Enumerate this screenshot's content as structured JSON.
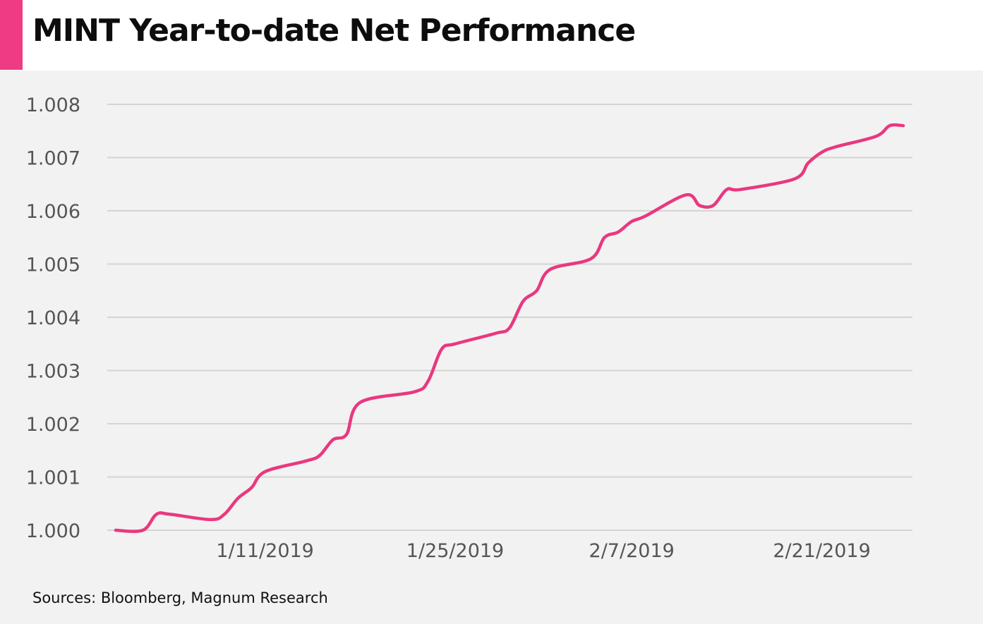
{
  "title": "MINT Year-to-date Net Performance",
  "source": "Sources:  Bloomberg, Magnum Research",
  "colors": {
    "accent": "#ef3b84",
    "line": "#e9387f",
    "grid": "#d4d4d4",
    "background": "#f2f2f2"
  },
  "chart_data": {
    "type": "line",
    "title": "MINT Year-to-date Net Performance",
    "xlabel": "",
    "ylabel": "",
    "grid": true,
    "legend": "none",
    "ylim": [
      1.0,
      1.008
    ],
    "yticks": [
      "1.000",
      "1.001",
      "1.002",
      "1.003",
      "1.004",
      "1.005",
      "1.006",
      "1.007",
      "1.008"
    ],
    "xticks": [
      "1/11/2019",
      "1/25/2019",
      "2/7/2019",
      "2/21/2019"
    ],
    "series": [
      {
        "x": [
          "12/31/2018",
          "1/2/2019",
          "1/3/2019",
          "1/4/2019",
          "1/7/2019",
          "1/8/2019",
          "1/9/2019",
          "1/10/2019",
          "1/11/2019",
          "1/14/2019",
          "1/15/2019",
          "1/16/2019",
          "1/17/2019",
          "1/18/2019",
          "1/22/2019",
          "1/23/2019",
          "1/24/2019",
          "1/25/2019",
          "1/28/2019",
          "1/29/2019",
          "1/30/2019",
          "1/31/2019",
          "2/1/2019",
          "2/4/2019",
          "2/5/2019",
          "2/6/2019",
          "2/7/2019",
          "2/8/2019",
          "2/11/2019",
          "2/12/2019",
          "2/13/2019",
          "2/14/2019",
          "2/15/2019",
          "2/19/2019",
          "2/20/2019",
          "2/21/2019",
          "2/22/2019",
          "2/25/2019",
          "2/26/2019",
          "2/27/2019"
        ],
        "values": [
          1.0,
          1.0,
          1.0003,
          1.0003,
          1.0002,
          1.0003,
          1.0006,
          1.0008,
          1.0011,
          1.0013,
          1.0014,
          1.0017,
          1.0018,
          1.0024,
          1.0026,
          1.0028,
          1.0034,
          1.0035,
          1.0037,
          1.0038,
          1.0043,
          1.0045,
          1.0049,
          1.0051,
          1.0055,
          1.0056,
          1.0058,
          1.0059,
          1.0063,
          1.0061,
          1.0061,
          1.0064,
          1.0064,
          1.0066,
          1.0069,
          1.0071,
          1.0072,
          1.0074,
          1.0076,
          1.0076
        ]
      }
    ]
  }
}
